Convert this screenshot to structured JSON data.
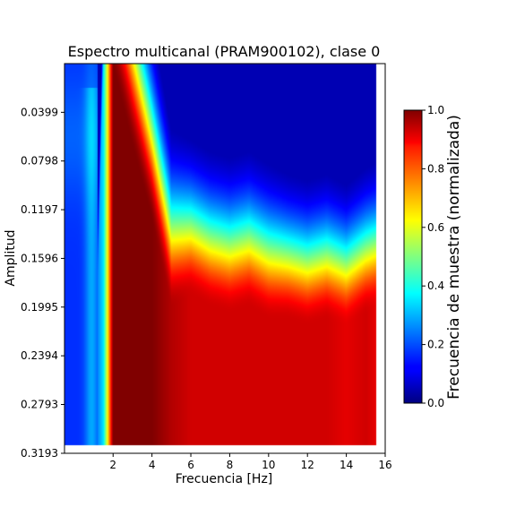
{
  "chart_data": {
    "type": "heatmap",
    "title": "Espectro multicanal (PRAM900102), clase 0",
    "xlabel": "Frecuencia [Hz]",
    "ylabel": "Amplitud",
    "x_ticks": [
      "2",
      "4",
      "6",
      "8",
      "10",
      "12",
      "14",
      "16"
    ],
    "x_tick_values": [
      2,
      4,
      6,
      8,
      10,
      12,
      14,
      16
    ],
    "y_ticks": [
      "0.0399",
      "0.0798",
      "0.1197",
      "0.1596",
      "0.1995",
      "0.2394",
      "0.2793",
      "0.3193"
    ],
    "y_tick_values": [
      0.0399,
      0.0798,
      0.1197,
      0.1596,
      0.1995,
      0.2394,
      0.2793,
      0.3193
    ],
    "xlim": [
      -0.5,
      16
    ],
    "ylim": [
      0.3193,
      0
    ],
    "y_axis_inverted": true,
    "colormap": "jet",
    "colorbar": {
      "label": "Frecuencia de muestra (normalizada)",
      "ticks": [
        "0.0",
        "0.2",
        "0.4",
        "0.6",
        "0.8",
        "1.0"
      ],
      "tick_values": [
        0.0,
        0.2,
        0.4,
        0.6,
        0.8,
        1.0
      ],
      "range": [
        0,
        1
      ]
    },
    "column_frequencies": [
      0,
      1,
      1.5,
      2,
      3,
      4,
      5,
      6,
      7,
      8,
      9,
      10,
      11,
      12,
      13,
      14,
      15,
      15.5
    ],
    "column_peak_amplitude": [
      0.32,
      0.32,
      0.01,
      0.005,
      0.07,
      0.13,
      0.2,
      0.19,
      0.2,
      0.205,
      0.2,
      0.21,
      0.21,
      0.215,
      0.21,
      0.215,
      0.205,
      0.2
    ],
    "column_max_value": [
      0.18,
      0.18,
      0.35,
      1.0,
      1.0,
      1.0,
      0.95,
      0.92,
      0.92,
      0.92,
      0.92,
      0.92,
      0.92,
      0.92,
      0.92,
      0.9,
      0.92,
      0.9
    ],
    "column_spread": [
      0.06,
      0.06,
      0.06,
      0.12,
      0.11,
      0.095,
      0.085,
      0.075,
      0.075,
      0.075,
      0.075,
      0.075,
      0.07,
      0.07,
      0.07,
      0.068,
      0.07,
      0.07
    ],
    "low_frequency_band_value": 0.17
  }
}
